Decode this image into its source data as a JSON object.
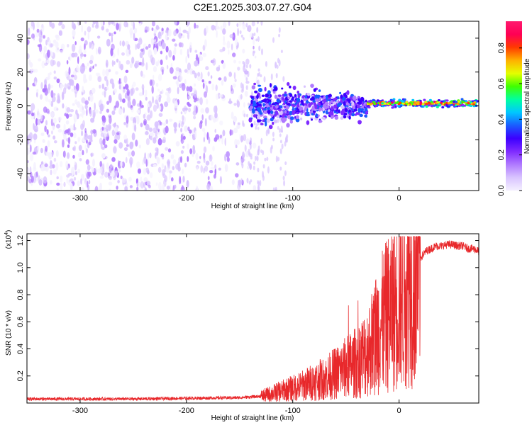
{
  "title": "C2E1.2025.303.07.27.G04",
  "colors": {
    "snr_line": "#e8282b",
    "scatter_main": "#7d1fff",
    "colorbar_stops": [
      "#f4f0ff",
      "#d9c4ff",
      "#b07aff",
      "#7f2bff",
      "#3c00ff",
      "#1a5cff",
      "#00c8ff",
      "#00ffa0",
      "#40ff00",
      "#e5ff00",
      "#ffb000",
      "#ff3a00",
      "#ff0055",
      "#ff1a6e"
    ]
  },
  "chart_data": [
    {
      "type": "heatmap",
      "title": "C2E1.2025.303.07.27.G04",
      "xlabel": "Height of straight line (km)",
      "ylabel": "Frequency (Hz)",
      "xlim": [
        -350,
        75
      ],
      "ylim": [
        -50,
        50
      ],
      "x_ticks": [
        -300,
        -200,
        -100,
        0
      ],
      "x_tick_labels": [
        "-300",
        "-200",
        "-100",
        "0"
      ],
      "y_ticks": [
        -40,
        -20,
        0,
        20,
        40
      ],
      "y_tick_labels": [
        "-40",
        "-20",
        "0",
        "20",
        "40"
      ],
      "colorbar": {
        "label": "Normalized spectral amplitude",
        "range": [
          0,
          0.95
        ],
        "ticks": [
          0,
          0.2,
          0.4,
          0.6,
          0.8
        ],
        "tick_labels": [
          "0.0",
          "0.2",
          "0.4",
          "0.6",
          "0.8"
        ]
      },
      "features": [
        {
          "x_range": [
            -350,
            -140
          ],
          "frequency_range": [
            -50,
            50
          ],
          "amplitude": "low (0.05-0.15)",
          "description": "broadband scattered energy"
        },
        {
          "x_range": [
            -140,
            -30
          ],
          "frequency_center": 0,
          "frequency_halfwidth_range": [
            5,
            10
          ],
          "amplitude": "0.2-0.4"
        },
        {
          "x_range": [
            -30,
            75
          ],
          "frequency_center": 1.5,
          "frequency_halfwidth": 2,
          "amplitude": "0.5-0.9"
        }
      ]
    },
    {
      "type": "line",
      "xlabel": "Height of straight line (km)",
      "ylabel": "SNR (10 * v/v)",
      "y_multiplier": "(x10",
      "y_multiplier_exp": "4",
      "y_multiplier_close": ")",
      "xlim": [
        -350,
        75
      ],
      "ylim": [
        0,
        1.25
      ],
      "x_ticks": [
        -300,
        -200,
        -100,
        0
      ],
      "x_tick_labels": [
        "-300",
        "-200",
        "-100",
        "0"
      ],
      "y_ticks": [
        0.2,
        0.4,
        0.6,
        0.8,
        1.0,
        1.2
      ],
      "y_tick_labels": [
        "0.2",
        "0.4",
        "0.6",
        "0.8",
        "1.0",
        "1.2"
      ],
      "series": [
        {
          "name": "SNR",
          "x": [
            -350,
            -300,
            -250,
            -200,
            -150,
            -130,
            -120,
            -110,
            -100,
            -90,
            -80,
            -70,
            -60,
            -50,
            -40,
            -30,
            -25,
            -20,
            -15,
            -10,
            -5,
            0,
            5,
            10,
            15,
            20,
            25,
            30,
            35,
            40,
            45,
            50,
            55,
            60,
            65,
            70,
            75
          ],
          "y": [
            0.03,
            0.03,
            0.03,
            0.035,
            0.04,
            0.05,
            0.07,
            0.09,
            0.11,
            0.13,
            0.16,
            0.18,
            0.22,
            0.26,
            0.3,
            0.38,
            0.45,
            0.55,
            0.6,
            0.66,
            0.72,
            0.8,
            0.88,
            0.95,
            1.02,
            1.07,
            1.12,
            1.14,
            1.16,
            1.16,
            1.17,
            1.17,
            1.16,
            1.16,
            1.14,
            1.14,
            1.12
          ]
        }
      ]
    }
  ]
}
